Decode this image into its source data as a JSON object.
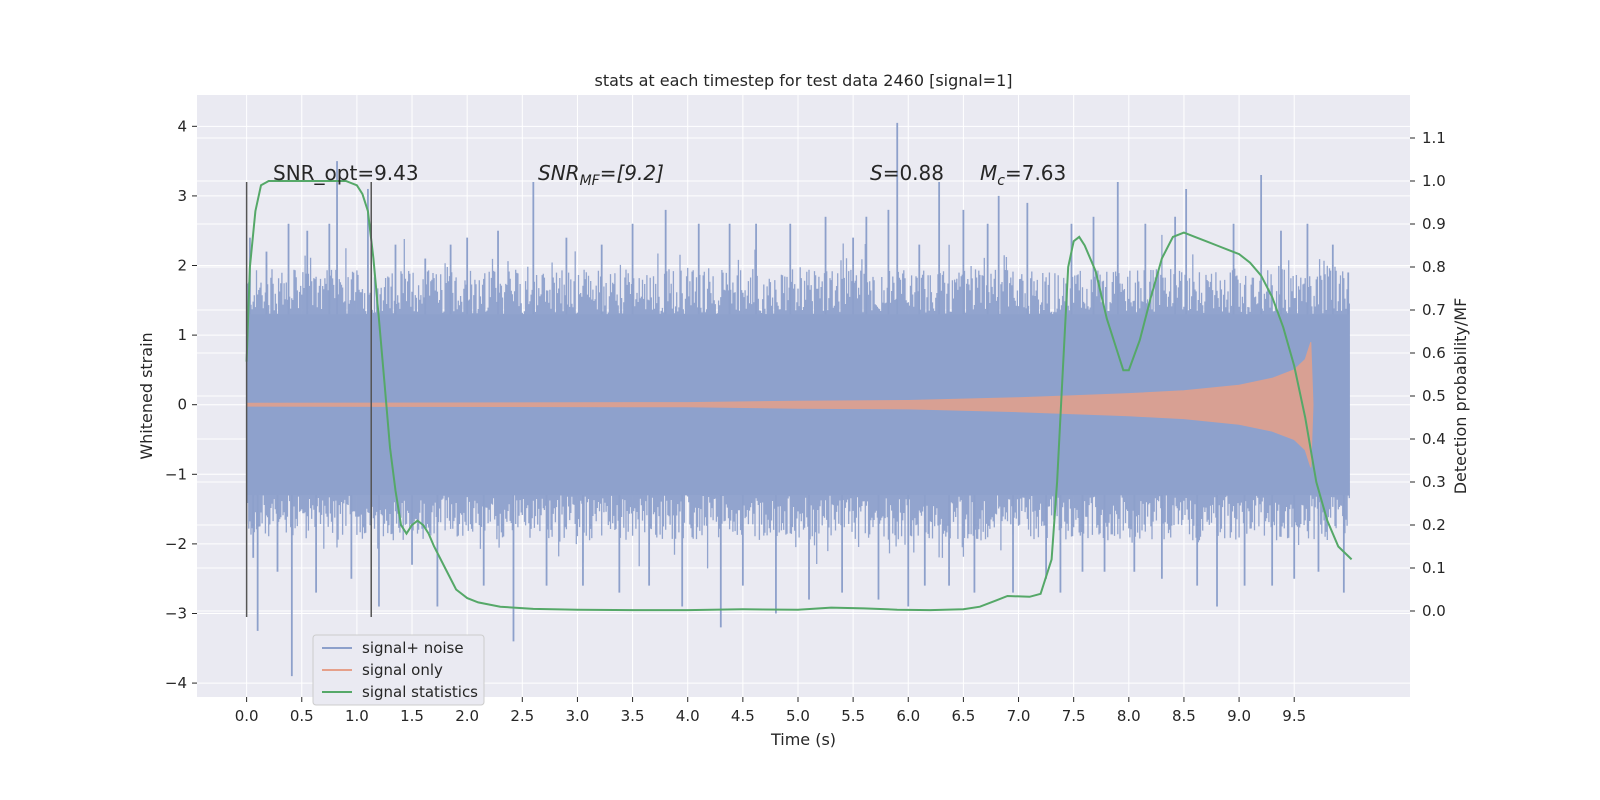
{
  "chart_data": {
    "type": "line",
    "title": "stats at each timestep for test data 2460 [signal=1]",
    "xlabel": "Time (s)",
    "ylabel": "Whitened strain",
    "ylabel_right": "Detection probability/MF",
    "xlim": [
      -0.45,
      10.55
    ],
    "ylim": [
      -4.2,
      4.45
    ],
    "ylim_right": [
      -0.2,
      1.2
    ],
    "x_ticks": [
      "0.0",
      "0.5",
      "1.0",
      "1.5",
      "2.0",
      "2.5",
      "3.0",
      "3.5",
      "4.0",
      "4.5",
      "5.0",
      "5.5",
      "6.0",
      "6.5",
      "7.0",
      "7.5",
      "8.0",
      "8.5",
      "9.0",
      "9.5"
    ],
    "y_ticks": [
      "4",
      "3",
      "2",
      "1",
      "0",
      "−1",
      "−2",
      "−3",
      "−4"
    ],
    "y_ticks_right": [
      "1.1",
      "1.0",
      "0.9",
      "0.8",
      "0.7",
      "0.6",
      "0.5",
      "0.4",
      "0.3",
      "0.2",
      "0.1",
      "0.0"
    ],
    "grid": true,
    "legend_position": "lower-left",
    "annotations": {
      "snr_opt": "SNR_opt=9.43",
      "snr_mf_main": "SNR",
      "snr_mf_sub": "MF",
      "snr_mf_value": "=[9.2]",
      "s_main": "S",
      "s_value": "=0.88",
      "mc_main": "M",
      "mc_sub": "c",
      "mc_value": "=7.63"
    },
    "vertical_lines": [
      {
        "x": 0.0,
        "y_range": [
          -3.05,
          3.2
        ]
      },
      {
        "x": 1.13,
        "y_range": [
          -3.05,
          3.2
        ]
      }
    ],
    "series": [
      {
        "name": "signal+ noise",
        "color": "#8da0cb",
        "x_range": [
          0.0,
          10.0
        ],
        "band": [
          -1.3,
          1.3
        ],
        "spikes": [
          [
            0.03,
            2.4
          ],
          [
            0.06,
            -2.2
          ],
          [
            0.1,
            -3.25
          ],
          [
            0.18,
            2.2
          ],
          [
            0.28,
            -2.4
          ],
          [
            0.38,
            2.6
          ],
          [
            0.41,
            -3.9
          ],
          [
            0.55,
            2.5
          ],
          [
            0.63,
            -2.7
          ],
          [
            0.75,
            2.6
          ],
          [
            0.82,
            3.5
          ],
          [
            0.95,
            -2.5
          ],
          [
            1.1,
            3.1
          ],
          [
            1.2,
            -2.9
          ],
          [
            1.35,
            2.3
          ],
          [
            1.5,
            -2.3
          ],
          [
            1.62,
            2.1
          ],
          [
            1.73,
            -2.9
          ],
          [
            1.85,
            2.3
          ],
          [
            2.0,
            2.4
          ],
          [
            2.15,
            -2.6
          ],
          [
            2.28,
            2.5
          ],
          [
            2.42,
            -3.4
          ],
          [
            2.6,
            3.2
          ],
          [
            2.72,
            -2.6
          ],
          [
            2.9,
            2.4
          ],
          [
            3.05,
            -2.6
          ],
          [
            3.22,
            2.3
          ],
          [
            3.38,
            -2.7
          ],
          [
            3.5,
            2.6
          ],
          [
            3.65,
            -2.6
          ],
          [
            3.8,
            2.8
          ],
          [
            3.95,
            -2.9
          ],
          [
            4.1,
            2.6
          ],
          [
            4.3,
            -3.2
          ],
          [
            4.38,
            2.6
          ],
          [
            4.5,
            -2.6
          ],
          [
            4.62,
            2.6
          ],
          [
            4.8,
            -3.0
          ],
          [
            4.93,
            2.6
          ],
          [
            5.1,
            -2.8
          ],
          [
            5.25,
            2.7
          ],
          [
            5.4,
            -2.7
          ],
          [
            5.5,
            2.4
          ],
          [
            5.62,
            2.7
          ],
          [
            5.73,
            -2.8
          ],
          [
            5.82,
            2.8
          ],
          [
            5.9,
            4.05
          ],
          [
            6.0,
            -2.9
          ],
          [
            6.1,
            2.3
          ],
          [
            6.15,
            -2.6
          ],
          [
            6.28,
            3.2
          ],
          [
            6.37,
            -2.6
          ],
          [
            6.5,
            2.8
          ],
          [
            6.6,
            -2.7
          ],
          [
            6.72,
            2.6
          ],
          [
            6.82,
            3.0
          ],
          [
            6.95,
            -2.7
          ],
          [
            7.08,
            2.9
          ],
          [
            7.25,
            -2.5
          ],
          [
            7.38,
            -2.7
          ],
          [
            7.48,
            2.6
          ],
          [
            7.58,
            -2.4
          ],
          [
            7.68,
            2.7
          ],
          [
            7.78,
            -2.4
          ],
          [
            7.9,
            3.2
          ],
          [
            8.05,
            -2.4
          ],
          [
            8.15,
            2.6
          ],
          [
            8.3,
            -2.5
          ],
          [
            8.42,
            2.7
          ],
          [
            8.52,
            3.1
          ],
          [
            8.62,
            -2.6
          ],
          [
            8.8,
            -2.9
          ],
          [
            8.95,
            2.6
          ],
          [
            9.05,
            -2.6
          ],
          [
            9.2,
            3.3
          ],
          [
            9.3,
            -2.6
          ],
          [
            9.38,
            2.5
          ],
          [
            9.5,
            -2.5
          ],
          [
            9.62,
            2.6
          ],
          [
            9.72,
            -2.4
          ],
          [
            9.85,
            2.3
          ],
          [
            9.95,
            -2.7
          ],
          [
            9.99,
            1.9
          ]
        ]
      },
      {
        "name": "signal only",
        "color": "#e6a08a",
        "envelope": [
          [
            0.0,
            0.02
          ],
          [
            4.0,
            0.03
          ],
          [
            5.0,
            0.05
          ],
          [
            6.0,
            0.06
          ],
          [
            7.0,
            0.1
          ],
          [
            7.5,
            0.13
          ],
          [
            8.0,
            0.16
          ],
          [
            8.5,
            0.2
          ],
          [
            9.0,
            0.28
          ],
          [
            9.3,
            0.38
          ],
          [
            9.5,
            0.5
          ],
          [
            9.6,
            0.65
          ],
          [
            9.65,
            0.9
          ],
          [
            9.67,
            0.0
          ]
        ]
      },
      {
        "name": "signal statistics",
        "color": "#55a868",
        "x": [
          0.0,
          0.03,
          0.08,
          0.13,
          0.2,
          0.3,
          0.5,
          0.7,
          0.9,
          1.0,
          1.05,
          1.1,
          1.15,
          1.2,
          1.25,
          1.3,
          1.35,
          1.4,
          1.45,
          1.5,
          1.55,
          1.6,
          1.65,
          1.7,
          1.8,
          1.9,
          2.0,
          2.1,
          2.3,
          2.6,
          3.0,
          3.5,
          4.0,
          4.5,
          5.0,
          5.3,
          5.6,
          5.9,
          6.2,
          6.5,
          6.65,
          6.8,
          6.9,
          7.1,
          7.2,
          7.3,
          7.35,
          7.4,
          7.45,
          7.5,
          7.55,
          7.6,
          7.7,
          7.8,
          7.9,
          7.95,
          8.0,
          8.1,
          8.2,
          8.3,
          8.4,
          8.5,
          8.6,
          8.7,
          8.8,
          8.9,
          9.0,
          9.1,
          9.2,
          9.3,
          9.4,
          9.5,
          9.6,
          9.7,
          9.8,
          9.9,
          10.02
        ],
        "y": [
          0.58,
          0.8,
          0.93,
          0.99,
          1.0,
          1.0,
          1.0,
          1.0,
          1.0,
          0.99,
          0.97,
          0.93,
          0.82,
          0.68,
          0.53,
          0.38,
          0.28,
          0.2,
          0.18,
          0.2,
          0.21,
          0.2,
          0.18,
          0.15,
          0.1,
          0.05,
          0.03,
          0.02,
          0.01,
          0.005,
          0.003,
          0.002,
          0.002,
          0.004,
          0.003,
          0.008,
          0.006,
          0.003,
          0.002,
          0.004,
          0.01,
          0.025,
          0.035,
          0.033,
          0.04,
          0.12,
          0.3,
          0.55,
          0.8,
          0.86,
          0.87,
          0.85,
          0.79,
          0.68,
          0.6,
          0.56,
          0.56,
          0.63,
          0.73,
          0.82,
          0.87,
          0.88,
          0.87,
          0.86,
          0.85,
          0.84,
          0.83,
          0.81,
          0.78,
          0.73,
          0.66,
          0.57,
          0.45,
          0.3,
          0.21,
          0.15,
          0.12
        ]
      }
    ]
  }
}
